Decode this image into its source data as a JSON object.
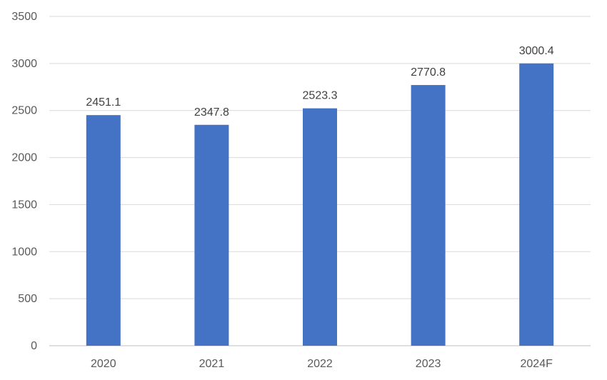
{
  "chart_data": {
    "type": "bar",
    "categories": [
      "2020",
      "2021",
      "2022",
      "2023",
      "2024F"
    ],
    "values": [
      2451.1,
      2347.8,
      2523.3,
      2770.8,
      3000.4
    ],
    "value_labels": [
      "2451.1",
      "2347.8",
      "2523.3",
      "2770.8",
      "3000.4"
    ],
    "title": "",
    "xlabel": "",
    "ylabel": "",
    "ylim": [
      0,
      3500
    ],
    "yticks": [
      "0",
      "500",
      "1000",
      "1500",
      "2000",
      "2500",
      "3000",
      "3500"
    ],
    "grid": true,
    "legend": "none",
    "bar_color": "#4472c4"
  }
}
